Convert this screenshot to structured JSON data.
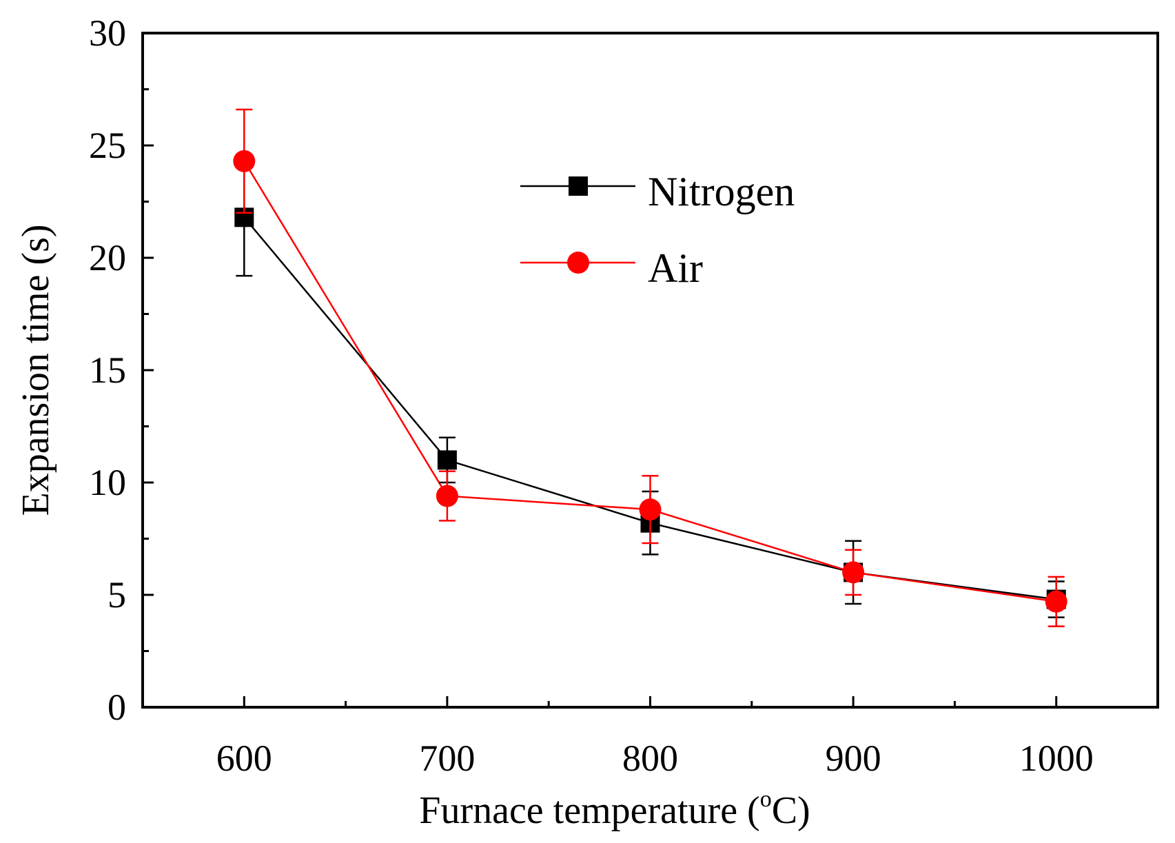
{
  "chart_data": {
    "type": "line",
    "title": "",
    "xlabel": {
      "prefix": "Furnace temperature (",
      "superscript": "o",
      "suffix": "C)"
    },
    "ylabel": "Expansion time (s)",
    "xlim": [
      550,
      1050
    ],
    "ylim": [
      0,
      30
    ],
    "x_ticks": [
      600,
      700,
      800,
      900,
      1000
    ],
    "x_minor_ticks": [
      650,
      750,
      850,
      950
    ],
    "y_ticks": [
      0,
      5,
      10,
      15,
      20,
      25,
      30
    ],
    "y_minor_ticks": [
      2.5,
      7.5,
      12.5,
      17.5,
      22.5,
      27.5
    ],
    "legend_position": "upper-center",
    "series": [
      {
        "name": "Nitrogen",
        "marker": "square",
        "color": "#000000",
        "x": [
          600,
          700,
          800,
          900,
          1000
        ],
        "y": [
          21.8,
          11.0,
          8.2,
          6.0,
          4.8
        ],
        "err": [
          2.6,
          1.0,
          1.4,
          1.4,
          0.8
        ]
      },
      {
        "name": "Air",
        "marker": "circle",
        "color": "#ff0000",
        "x": [
          600,
          700,
          800,
          900,
          1000
        ],
        "y": [
          24.3,
          9.4,
          8.8,
          6.0,
          4.7
        ],
        "err": [
          2.3,
          1.1,
          1.5,
          1.0,
          1.1
        ]
      }
    ]
  }
}
